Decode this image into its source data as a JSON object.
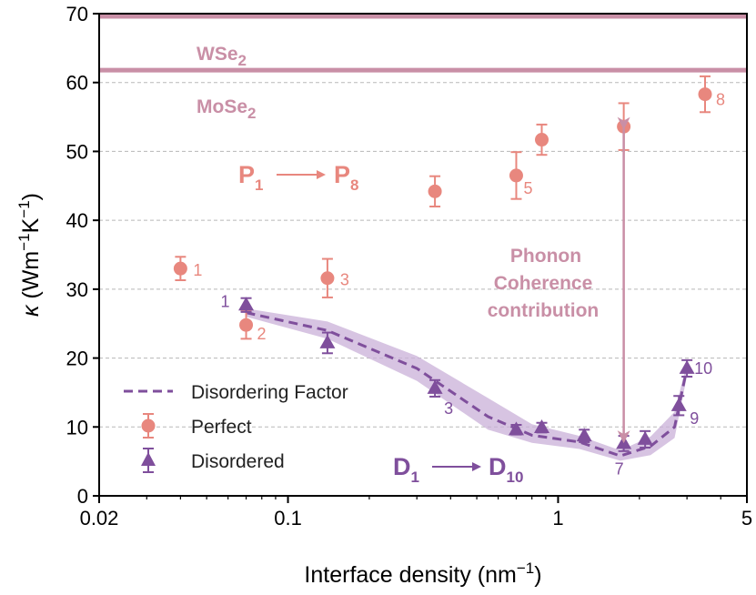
{
  "chart_data": {
    "type": "scatter",
    "xscale": "log",
    "xlim": [
      0.02,
      5
    ],
    "ylim": [
      0,
      70
    ],
    "xticks": [
      {
        "value": 0.02,
        "label": "0.02"
      },
      {
        "value": 0.1,
        "label": "0.1"
      },
      {
        "value": 1,
        "label": "1"
      },
      {
        "value": 5,
        "label": "5"
      }
    ],
    "yticks": [
      {
        "value": 0,
        "label": "0"
      },
      {
        "value": 10,
        "label": "10"
      },
      {
        "value": 20,
        "label": "20"
      },
      {
        "value": 30,
        "label": "30"
      },
      {
        "value": 40,
        "label": "40"
      },
      {
        "value": 50,
        "label": "50"
      },
      {
        "value": 60,
        "label": "60"
      },
      {
        "value": 70,
        "label": "70"
      }
    ],
    "grid": "horizontal dashed",
    "xlabel_base": "Interface density (nm",
    "xlabel_sup": "−1",
    "xlabel_end": ")",
    "ylabel": {
      "kappa": "κ",
      "open": " (Wm",
      "sup1": "−1",
      "k": "K",
      "sup2": "−1",
      "close": ")"
    },
    "reference_lines": [
      {
        "name": "WSe",
        "sub": "2",
        "value": 69.6,
        "color": "#c98fa6"
      },
      {
        "name": "MoSe",
        "sub": "2",
        "value": 61.8,
        "color": "#c98fa6"
      }
    ],
    "perfect": {
      "name": "Perfect",
      "color": "#e8877e",
      "points": [
        {
          "x": 0.04,
          "y": 33.0,
          "err": 1.7,
          "label": "1"
        },
        {
          "x": 0.07,
          "y": 24.8,
          "err": 2.0,
          "label": "2"
        },
        {
          "x": 0.14,
          "y": 31.6,
          "err": 2.8,
          "label": "3"
        },
        {
          "x": 0.35,
          "y": 44.2,
          "err": 2.2,
          "label": ""
        },
        {
          "x": 0.7,
          "y": 46.5,
          "err": 3.4,
          "label": "5"
        },
        {
          "x": 0.87,
          "y": 51.7,
          "err": 2.2,
          "label": ""
        },
        {
          "x": 1.75,
          "y": 53.6,
          "err": 3.4,
          "label": ""
        },
        {
          "x": 3.5,
          "y": 58.3,
          "err": 2.6,
          "label": "8"
        }
      ]
    },
    "disordered": {
      "name": "Disordered",
      "color": "#7f4f9c",
      "points": [
        {
          "x": 0.07,
          "y": 27.7,
          "err": 1.0,
          "label": "1"
        },
        {
          "x": 0.14,
          "y": 22.2,
          "err": 1.5,
          "label": ""
        },
        {
          "x": 0.35,
          "y": 15.6,
          "err": 1.2,
          "label": "3"
        },
        {
          "x": 0.7,
          "y": 9.6,
          "err": 0.7,
          "label": ""
        },
        {
          "x": 0.87,
          "y": 9.9,
          "err": 0.7,
          "label": ""
        },
        {
          "x": 1.25,
          "y": 8.7,
          "err": 0.9,
          "label": ""
        },
        {
          "x": 1.75,
          "y": 7.6,
          "err": 1.1,
          "label": "7"
        },
        {
          "x": 2.1,
          "y": 8.2,
          "err": 1.2,
          "label": ""
        },
        {
          "x": 2.8,
          "y": 13.1,
          "err": 1.4,
          "label": "9"
        },
        {
          "x": 3.0,
          "y": 18.5,
          "err": 1.2,
          "label": "10"
        }
      ]
    },
    "disordering_factor": {
      "name": "Disordering Factor",
      "color": "#7f4f9c",
      "x": [
        0.07,
        0.14,
        0.3,
        0.55,
        0.8,
        1.2,
        1.7,
        2.2,
        2.7,
        3.0
      ],
      "y": [
        26.6,
        24.0,
        18.5,
        11.5,
        8.8,
        7.8,
        5.8,
        7.2,
        10.0,
        18.5
      ],
      "band_upper": [
        27.2,
        25.3,
        20.3,
        14.2,
        10.4,
        8.7,
        6.6,
        8.6,
        12.2,
        19.3
      ],
      "band_lower": [
        26.0,
        22.8,
        16.7,
        9.6,
        7.7,
        6.8,
        5.1,
        5.9,
        8.4,
        17.4
      ]
    },
    "coherence": {
      "x": 1.75,
      "y_top": 53.4,
      "y_bottom": 7.9,
      "lines": [
        "Phonon",
        "Coherence",
        "contribution"
      ],
      "color": "#c98fa6"
    },
    "seq_perfect": {
      "from": "P",
      "from_sub": "1",
      "to": "P",
      "to_sub": "8"
    },
    "seq_disordered": {
      "from": "D",
      "from_sub": "1",
      "to": "D",
      "to_sub": "10"
    },
    "legend": [
      {
        "label": "Disordering Factor",
        "kind": "dashed"
      },
      {
        "label": "Perfect",
        "kind": "circle"
      },
      {
        "label": "Disordered",
        "kind": "triangle"
      }
    ]
  }
}
